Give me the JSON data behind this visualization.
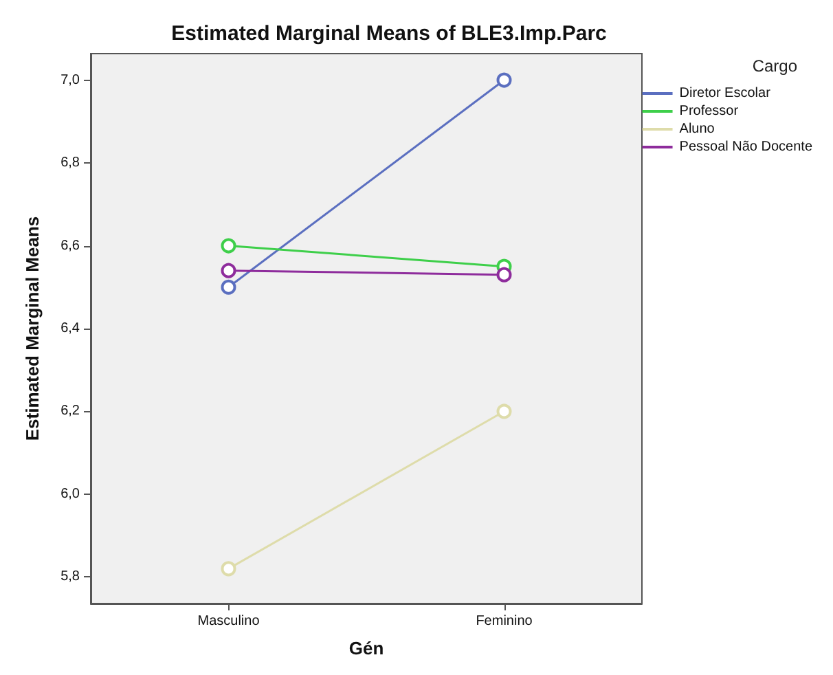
{
  "chart_data": {
    "type": "line",
    "title": "Estimated Marginal Means of BLE3.Imp.Parc",
    "xlabel": "Gén",
    "ylabel": "Estimated Marginal Means",
    "legend_title": "Cargo",
    "legend": "top right",
    "marker": "circle",
    "grid": false,
    "categories": [
      "Masculino",
      "Feminino"
    ],
    "ylim": [
      5.736,
      7.064
    ],
    "yticks": [
      {
        "value": 5.8,
        "label": "5,8"
      },
      {
        "value": 6.0,
        "label": "6,0"
      },
      {
        "value": 6.2,
        "label": "6,2"
      },
      {
        "value": 6.4,
        "label": "6,4"
      },
      {
        "value": 6.6,
        "label": "6,6"
      },
      {
        "value": 6.8,
        "label": "6,8"
      },
      {
        "value": 7.0,
        "label": "7,0"
      }
    ],
    "series": [
      {
        "name": "Diretor Escolar",
        "color": "#5b6fc0",
        "values": [
          6.5,
          7.0
        ]
      },
      {
        "name": "Professor",
        "color": "#3ecf4a",
        "values": [
          6.6,
          6.55
        ]
      },
      {
        "name": "Aluno",
        "color": "#dedcaa",
        "values": [
          5.82,
          6.2
        ]
      },
      {
        "name": "Pessoal Não Docente",
        "color": "#8e2c9c",
        "values": [
          6.54,
          6.53
        ]
      }
    ]
  }
}
